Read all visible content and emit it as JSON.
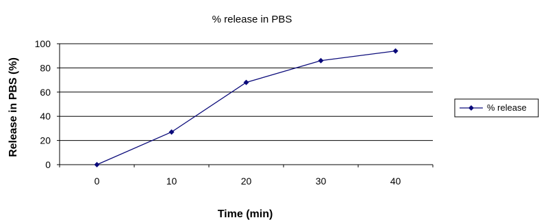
{
  "chart_data": {
    "type": "line",
    "title": "% release in PBS",
    "xlabel": "Time (min)",
    "ylabel": "Release in PBS (%)",
    "categories": [
      "0",
      "10",
      "20",
      "30",
      "40"
    ],
    "ylim": [
      0,
      100
    ],
    "yticks": [
      0,
      20,
      40,
      60,
      80,
      100
    ],
    "grid": "horizontal",
    "legend_position": "right",
    "series": [
      {
        "name": "% release",
        "values": [
          0,
          27,
          68,
          86,
          94
        ],
        "color": "#0a0a7a",
        "marker": "diamond"
      }
    ]
  }
}
